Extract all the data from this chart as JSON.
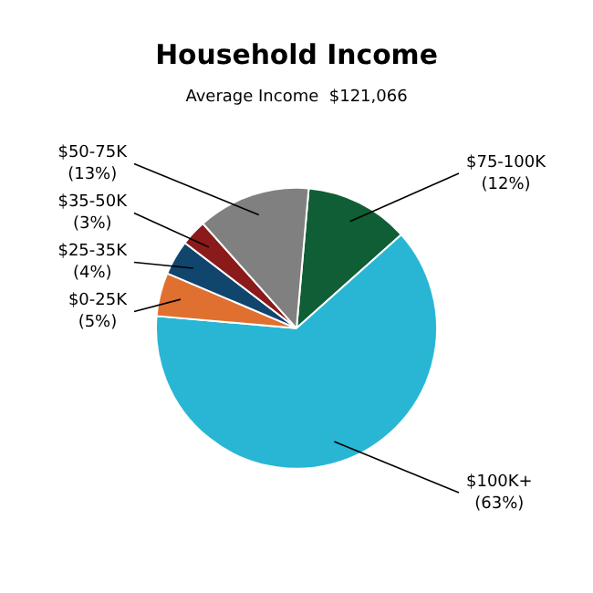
{
  "chart_data": {
    "type": "pie",
    "title": "Household Income",
    "subtitle": "Average Income  $121,066",
    "categories": [
      "$75-100K",
      "$100K+",
      "$0-25K",
      "$25-35K",
      "$35-50K",
      "$50-75K"
    ],
    "values": [
      12,
      63,
      5,
      4,
      3,
      13
    ],
    "colors": [
      "#0f5e35",
      "#29b6d4",
      "#e07030",
      "#10456e",
      "#8b1a1a",
      "#808080"
    ],
    "value_labels": [
      "(12%)",
      "(63%)",
      "(5%)",
      "(4%)",
      "(3%)",
      "(13%)"
    ],
    "legend": false
  }
}
